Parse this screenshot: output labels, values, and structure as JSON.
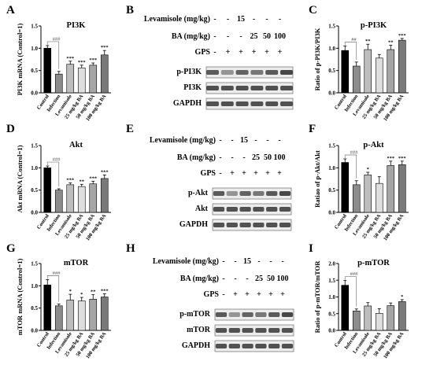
{
  "chart_data": [
    {
      "panel": "A",
      "type": "bar",
      "title": "PI3K",
      "ylabel": "PI3K mRNA (Control=1)",
      "ylim": [
        0,
        1.5
      ],
      "yticks": [
        "0.0",
        "0.5",
        "1.0",
        "1.5"
      ],
      "categories": [
        "Control",
        "Infection",
        "Levamisole",
        "25 mg/kg BA",
        "50 mg/kg BA",
        "100 mg/kg BA"
      ],
      "values": [
        1.0,
        0.42,
        0.64,
        0.56,
        0.62,
        0.85
      ],
      "errors": [
        0.06,
        0.06,
        0.07,
        0.06,
        0.05,
        0.1
      ],
      "sig": [
        "",
        "",
        "***",
        "***",
        "***",
        "***"
      ],
      "bracket": "###"
    },
    {
      "panel": "C",
      "type": "bar",
      "title": "p-PI3K",
      "ylabel": "Ratio of p-PI3K/PI3K",
      "ylim": [
        0,
        1.5
      ],
      "yticks": [
        "0.0",
        "0.5",
        "1.0",
        "1.5"
      ],
      "categories": [
        "Control",
        "Infection",
        "Levamisole",
        "25 mg/kg BA",
        "50 mg/kg BA",
        "100 mg/kg BA"
      ],
      "values": [
        0.95,
        0.6,
        0.97,
        0.78,
        0.97,
        1.18
      ],
      "errors": [
        0.1,
        0.09,
        0.12,
        0.08,
        0.1,
        0.04
      ],
      "sig": [
        "",
        "",
        "**",
        "",
        "**",
        "***"
      ],
      "bracket": "##"
    },
    {
      "panel": "D",
      "type": "bar",
      "title": "Akt",
      "ylabel": "Akt mRNA (Control=1)",
      "ylim": [
        0,
        1.5
      ],
      "yticks": [
        "0.0",
        "0.5",
        "1.0",
        "1.5"
      ],
      "categories": [
        "Control",
        "Infection",
        "Levamisole",
        "25 mg/kg BA",
        "50 mg/kg BA",
        "100 mg/kg BA"
      ],
      "values": [
        1.0,
        0.5,
        0.62,
        0.58,
        0.64,
        0.76
      ],
      "errors": [
        0.04,
        0.03,
        0.04,
        0.05,
        0.06,
        0.08
      ],
      "sig": [
        "",
        "",
        "***",
        "**",
        "***",
        "***"
      ],
      "bracket": "###"
    },
    {
      "panel": "F",
      "type": "bar",
      "title": "p-Akt",
      "ylabel": "Ratiao of p-Akt/Akt",
      "ylim": [
        0,
        1.5
      ],
      "yticks": [
        "0.0",
        "0.5",
        "1.0",
        "1.5"
      ],
      "categories": [
        "Control",
        "Infection",
        "Levamisole",
        "25 mg/kg BA",
        "50 mg/kg BA",
        "100 mg/kg BA"
      ],
      "values": [
        1.12,
        0.62,
        0.84,
        0.65,
        1.05,
        1.07
      ],
      "errors": [
        0.08,
        0.09,
        0.06,
        0.15,
        0.1,
        0.08
      ],
      "sig": [
        "",
        "",
        "*",
        "",
        "***",
        "***"
      ],
      "bracket": "###"
    },
    {
      "panel": "G",
      "type": "bar",
      "title": "mTOR",
      "ylabel": "mTOR mRNA (Control=1)",
      "ylim": [
        0,
        1.5
      ],
      "yticks": [
        "0.0",
        "0.5",
        "1.0",
        "1.5"
      ],
      "categories": [
        "Control",
        "Infection",
        "Levamisole",
        "25 mg/kg BA",
        "50 mg/kg BA",
        "100 mg/kg BA"
      ],
      "values": [
        1.02,
        0.55,
        0.68,
        0.66,
        0.7,
        0.75
      ],
      "errors": [
        0.12,
        0.04,
        0.13,
        0.08,
        0.1,
        0.07
      ],
      "sig": [
        "",
        "",
        "*",
        "*",
        "**",
        "***"
      ],
      "bracket": "###"
    },
    {
      "panel": "I",
      "type": "bar",
      "title": "p-mTOR",
      "ylabel": "Ratio of p-mTOR/mTOR",
      "ylim": [
        0,
        2.0
      ],
      "yticks": [
        "0.0",
        "0.5",
        "1.0",
        "1.5",
        "2.0"
      ],
      "categories": [
        "Control",
        "Infection",
        "Levamisole",
        "25 mg/kg BA",
        "50 mg/kg BA",
        "100 mg/kg BA"
      ],
      "values": [
        1.35,
        0.58,
        0.73,
        0.51,
        0.74,
        0.86
      ],
      "errors": [
        0.14,
        0.06,
        0.1,
        0.14,
        0.08,
        0.06
      ],
      "sig": [
        "",
        "",
        "",
        "",
        "",
        "*"
      ],
      "bracket": "###"
    }
  ],
  "blots": [
    {
      "panel": "B",
      "levamisole_label": "Levamisole (mg/kg)",
      "levamisole": [
        "-",
        "-",
        "15",
        "-",
        "-",
        "-"
      ],
      "ba_label": "BA  (mg/kg)",
      "ba": [
        "-",
        "-",
        "-",
        "25",
        "50",
        "100"
      ],
      "gps_label": "GPS",
      "gps": [
        "-",
        "+",
        "+",
        "+",
        "+",
        "+"
      ],
      "bands": [
        "p-PI3K",
        "PI3K",
        "GAPDH"
      ]
    },
    {
      "panel": "E",
      "levamisole_label": "Levamisole (mg/kg)",
      "levamisole": [
        "-",
        "-",
        "15",
        "-",
        "-",
        "-"
      ],
      "ba_label": "BA  (mg/kg)",
      "ba": [
        "-",
        "-",
        "-",
        "25",
        "50",
        "100"
      ],
      "gps_label": "GPS",
      "gps": [
        "-",
        "+",
        "+",
        "+",
        "+",
        "+"
      ],
      "bands": [
        "p-Akt",
        "Akt",
        "GAPDH"
      ]
    },
    {
      "panel": "H",
      "levamisole_label": "Levamisole (mg/kg)",
      "levamisole": [
        "-",
        "-",
        "15",
        "-",
        "-",
        "-"
      ],
      "ba_label": "BA  (mg/kg)",
      "ba": [
        "-",
        "-",
        "-",
        "25",
        "50",
        "100"
      ],
      "gps_label": "GPS",
      "gps": [
        "-",
        "+",
        "+",
        "+",
        "+",
        "+"
      ],
      "bands": [
        "p-mTOR",
        "mTOR",
        "GAPDH"
      ]
    }
  ],
  "colors": {
    "bars": [
      "#000000",
      "#8c8c8c",
      "#bdbdbd",
      "#dedede",
      "#a6a6a6",
      "#7a7a7a"
    ],
    "blot_bg": "#ececec",
    "band": "#2a2a2a"
  }
}
